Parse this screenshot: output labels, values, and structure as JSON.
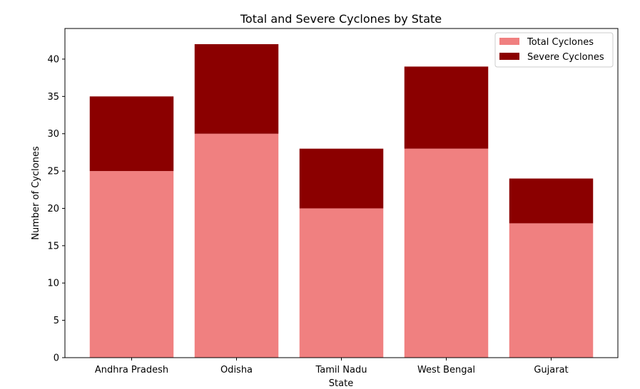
{
  "chart_data": {
    "type": "bar",
    "stacked": true,
    "title": "Total and Severe Cyclones by State",
    "xlabel": "State",
    "ylabel": "Number of Cyclones",
    "categories": [
      "Andhra Pradesh",
      "Odisha",
      "Tamil Nadu",
      "West Bengal",
      "Gujarat"
    ],
    "series": [
      {
        "name": "Total Cyclones",
        "values": [
          25,
          30,
          20,
          28,
          18
        ],
        "color": "#f08080"
      },
      {
        "name": "Severe Cyclones",
        "values": [
          10,
          12,
          8,
          11,
          6
        ],
        "color": "#8b0000"
      }
    ],
    "yticks": [
      0,
      5,
      10,
      15,
      20,
      25,
      30,
      35,
      40
    ],
    "ylim": [
      0,
      44.1
    ],
    "grid": false,
    "legend_position": "top-right"
  }
}
